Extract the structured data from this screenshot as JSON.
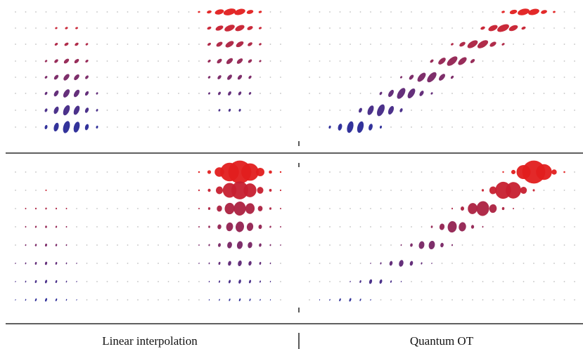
{
  "captions": [
    "Linear interpolation",
    "Quantum OT"
  ]
}
